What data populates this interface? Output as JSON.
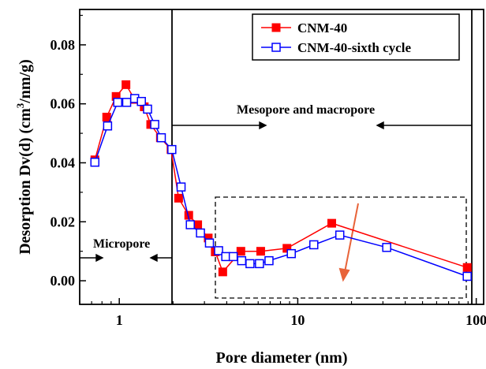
{
  "chart_data": {
    "type": "line",
    "xlabel": "Pore diameter (nm)",
    "ylabel_main": "Desorption Dv(d) (cm",
    "ylabel_sup": "3",
    "ylabel_end": "/nm/g)",
    "x_scale": "log",
    "xlim": [
      0.6,
      110
    ],
    "ylim": [
      -0.008,
      0.092
    ],
    "x_ticks": [
      {
        "value": 1,
        "label": "1"
      },
      {
        "value": 10,
        "label": "10"
      },
      {
        "value": 100,
        "label": "100"
      }
    ],
    "y_ticks": [
      {
        "value": 0.0,
        "label": "0.00"
      },
      {
        "value": 0.02,
        "label": "0.02"
      },
      {
        "value": 0.04,
        "label": "0.04"
      },
      {
        "value": 0.06,
        "label": "0.06"
      },
      {
        "value": 0.08,
        "label": "0.08"
      }
    ],
    "series": [
      {
        "name": "CNM-40",
        "color": "#ff0000",
        "marker": "filled-square",
        "points": [
          [
            0.73,
            0.041
          ],
          [
            0.85,
            0.0555
          ],
          [
            0.96,
            0.0625
          ],
          [
            1.09,
            0.0665
          ],
          [
            1.22,
            0.0615
          ],
          [
            1.38,
            0.059
          ],
          [
            1.5,
            0.053
          ],
          [
            1.7,
            0.0485
          ],
          [
            1.95,
            0.0445
          ],
          [
            2.15,
            0.028
          ],
          [
            2.45,
            0.0222
          ],
          [
            2.75,
            0.019
          ],
          [
            3.15,
            0.0145
          ],
          [
            3.45,
            0.0098
          ],
          [
            3.8,
            0.003
          ],
          [
            4.8,
            0.01
          ],
          [
            6.2,
            0.01
          ],
          [
            8.7,
            0.011
          ],
          [
            15.5,
            0.0195
          ],
          [
            89,
            0.0045
          ]
        ]
      },
      {
        "name": "CNM-40-sixth cycle",
        "color": "#0000ff",
        "marker": "open-square",
        "points": [
          [
            0.73,
            0.0402
          ],
          [
            0.86,
            0.0525
          ],
          [
            0.98,
            0.0605
          ],
          [
            1.1,
            0.0605
          ],
          [
            1.22,
            0.0618
          ],
          [
            1.33,
            0.0608
          ],
          [
            1.44,
            0.0582
          ],
          [
            1.58,
            0.053
          ],
          [
            1.72,
            0.0485
          ],
          [
            1.97,
            0.0445
          ],
          [
            2.22,
            0.0318
          ],
          [
            2.5,
            0.019
          ],
          [
            2.85,
            0.0162
          ],
          [
            3.2,
            0.0128
          ],
          [
            3.6,
            0.0102
          ],
          [
            3.95,
            0.0082
          ],
          [
            4.35,
            0.0082
          ],
          [
            4.85,
            0.0068
          ],
          [
            5.4,
            0.0058
          ],
          [
            6.1,
            0.0058
          ],
          [
            6.9,
            0.0068
          ],
          [
            9.2,
            0.0092
          ],
          [
            12.3,
            0.0122
          ],
          [
            17.2,
            0.0155
          ],
          [
            31.5,
            0.0113
          ],
          [
            89,
            0.0015
          ]
        ]
      }
    ],
    "annotations": {
      "micropore": "Micropore",
      "meso_macro": "Mesopore and macropore"
    },
    "legend_position": "top-right",
    "grid": false
  }
}
